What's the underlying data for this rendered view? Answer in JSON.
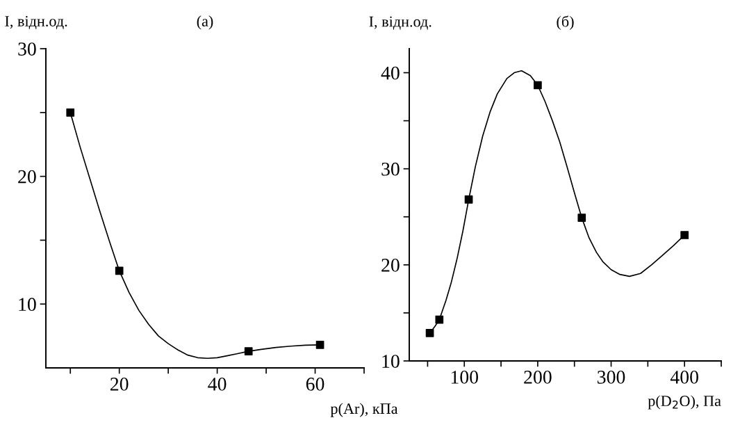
{
  "chart_data": [
    {
      "type": "line",
      "title": "(а)",
      "ylabel": "I, відн.од.",
      "xlabel": "p(Ar), кПа",
      "xlim": [
        5,
        70
      ],
      "xticks": [
        {
          "value": 10,
          "label": null
        },
        20,
        {
          "value": 30,
          "label": null
        },
        40,
        {
          "value": 50,
          "label": null
        },
        60,
        {
          "value": 70,
          "label": null
        }
      ],
      "ylim": [
        5,
        30
      ],
      "yticks": [
        10,
        {
          "value": 15,
          "label": null
        },
        20,
        {
          "value": 25,
          "label": null
        },
        30
      ],
      "series": [
        {
          "type": "scatter",
          "color": "#000000",
          "marker": "square",
          "x": [
            10,
            20,
            46.4,
            61
          ],
          "values": [
            25,
            12.6,
            6.3,
            6.8
          ]
        },
        {
          "type": "line",
          "color": "#000000",
          "marker": "none",
          "line_style": "solid",
          "x": [
            10,
            12,
            14,
            16,
            18,
            20,
            22,
            24,
            26,
            28,
            30,
            32,
            34,
            36,
            38,
            40,
            42,
            44,
            46.4,
            49,
            52,
            55,
            58,
            61
          ],
          "values": [
            25,
            22.3,
            19.8,
            17.3,
            14.9,
            12.6,
            10.9,
            9.5,
            8.4,
            7.5,
            6.9,
            6.4,
            6.0,
            5.8,
            5.75,
            5.8,
            5.95,
            6.1,
            6.3,
            6.45,
            6.6,
            6.7,
            6.78,
            6.8
          ]
        }
      ]
    },
    {
      "type": "line",
      "title": "(б)",
      "ylabel": "I, відн.од.",
      "xlabel": "p(D$_{2}$O), Па",
      "xlim": [
        25,
        450
      ],
      "xticks": [
        {
          "value": 50,
          "label": null
        },
        100,
        {
          "value": 150,
          "label": null
        },
        200,
        {
          "value": 250,
          "label": null
        },
        300,
        {
          "value": 350,
          "label": null
        },
        400,
        {
          "value": 450,
          "label": null
        }
      ],
      "ylim": [
        10,
        42.5
      ],
      "yticks": [
        10,
        {
          "value": 15,
          "label": null
        },
        20,
        {
          "value": 25,
          "label": null
        },
        30,
        {
          "value": 35,
          "label": null
        },
        40
      ],
      "series": [
        {
          "type": "scatter",
          "color": "#000000",
          "marker": "square",
          "x": [
            53,
            66,
            106,
            200,
            260,
            400
          ],
          "values": [
            12.9,
            14.3,
            26.8,
            38.7,
            24.9,
            23.1
          ]
        },
        {
          "type": "line",
          "color": "#000000",
          "marker": "none",
          "line_style": "solid",
          "x": [
            53,
            60,
            66,
            75,
            82,
            90,
            98,
            106,
            115,
            125,
            135,
            145,
            158,
            168,
            178,
            190,
            200,
            210,
            220,
            230,
            240,
            250,
            260,
            270,
            280,
            289,
            300,
            312,
            325,
            340,
            355,
            370,
            385,
            400
          ],
          "values": [
            12.9,
            13.6,
            14.3,
            16.3,
            18.1,
            20.6,
            23.5,
            26.8,
            30.2,
            33.4,
            35.9,
            37.8,
            39.4,
            40.0,
            40.2,
            39.7,
            38.7,
            37.0,
            35.0,
            32.8,
            30.2,
            27.5,
            24.9,
            22.8,
            21.3,
            20.3,
            19.5,
            19.0,
            18.8,
            19.1,
            20.0,
            21.0,
            22.0,
            23.1
          ]
        }
      ]
    }
  ]
}
